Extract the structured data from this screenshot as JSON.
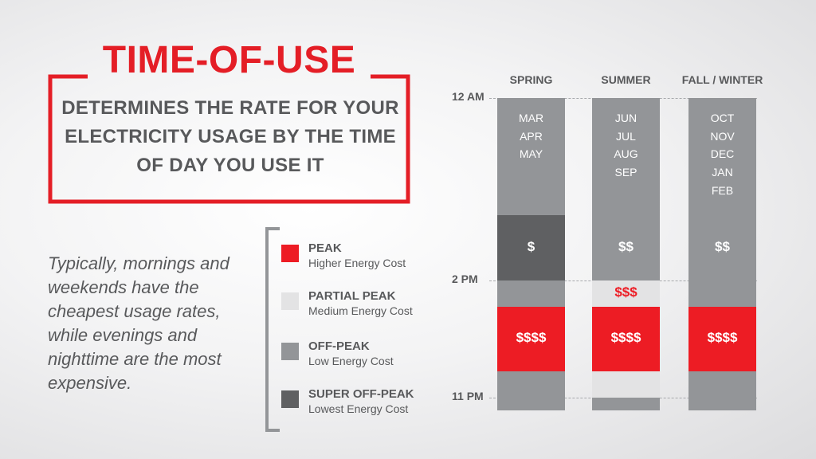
{
  "title": "TIME-OF-USE",
  "subtitle": "DETERMINES THE RATE FOR YOUR ELECTRICITY USAGE BY THE TIME OF DAY YOU USE IT",
  "description": "Typically, mornings and weekends have the cheapest usage rates, while evenings and nighttime are the most expensive.",
  "colors": {
    "peak": "#ed1c24",
    "partial_peak": "#e3e3e4",
    "off_peak": "#939598",
    "super_off_peak": "#5f6062",
    "title": "#e41e26",
    "text": "#58595b"
  },
  "legend": [
    {
      "name": "PEAK",
      "desc": "Higher Energy Cost",
      "color_key": "peak"
    },
    {
      "name": "PARTIAL PEAK",
      "desc": "Medium Energy Cost",
      "color_key": "partial_peak"
    },
    {
      "name": "OFF-PEAK",
      "desc": "Low Energy Cost",
      "color_key": "off_peak"
    },
    {
      "name": "SUPER OFF-PEAK",
      "desc": "Lowest Energy Cost",
      "color_key": "super_off_peak"
    }
  ],
  "time_labels": [
    "12 AM",
    "2 PM",
    "11 PM"
  ],
  "seasons": [
    {
      "name": "SPRING",
      "months": [
        "MAR",
        "APR",
        "MAY"
      ],
      "segments": [
        {
          "level": "off_peak",
          "hours": 9,
          "label": ""
        },
        {
          "level": "super_off_peak",
          "hours": 5,
          "label": "$"
        },
        {
          "level": "off_peak",
          "hours": 2,
          "label": ""
        },
        {
          "level": "peak",
          "hours": 5,
          "label": "$$$$"
        },
        {
          "level": "off_peak",
          "hours": 3,
          "label": ""
        }
      ]
    },
    {
      "name": "SUMMER",
      "months": [
        "JUN",
        "JUL",
        "AUG",
        "SEP"
      ],
      "segments": [
        {
          "level": "off_peak",
          "hours": 14,
          "label": "$$"
        },
        {
          "level": "partial_peak",
          "hours": 2,
          "label": "$$$"
        },
        {
          "level": "peak",
          "hours": 5,
          "label": "$$$$"
        },
        {
          "level": "partial_peak",
          "hours": 2,
          "label": ""
        },
        {
          "level": "off_peak",
          "hours": 1,
          "label": ""
        }
      ]
    },
    {
      "name": "FALL / WINTER",
      "months": [
        "OCT",
        "NOV",
        "DEC",
        "JAN",
        "FEB"
      ],
      "segments": [
        {
          "level": "off_peak",
          "hours": 16,
          "label": "$$"
        },
        {
          "level": "peak",
          "hours": 5,
          "label": "$$$$"
        },
        {
          "level": "off_peak",
          "hours": 3,
          "label": ""
        }
      ]
    }
  ]
}
